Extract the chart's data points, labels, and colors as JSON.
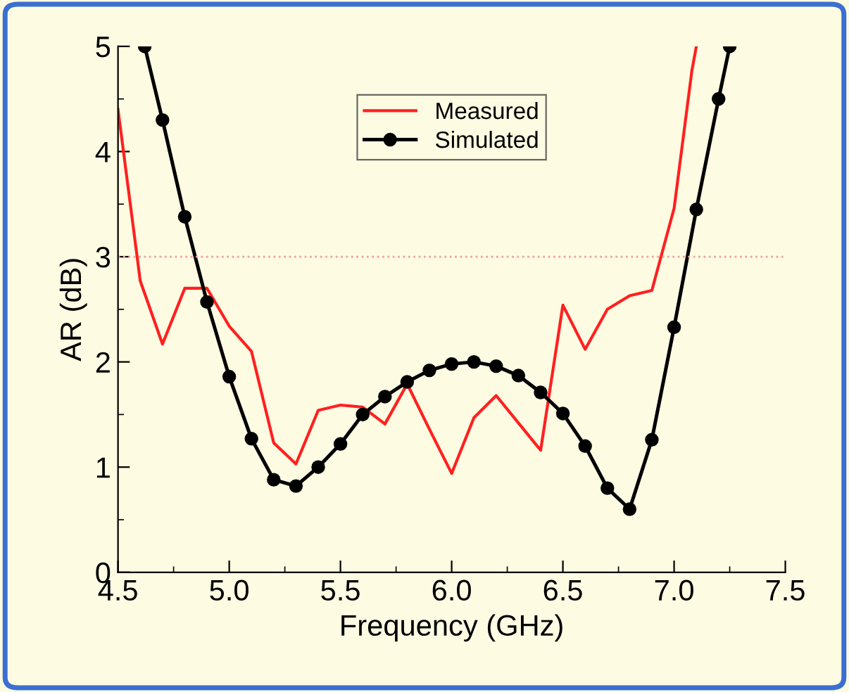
{
  "chart_data": {
    "type": "line",
    "xlabel": "Frequency (GHz)",
    "ylabel": "AR (dB)",
    "xlim": [
      4.5,
      7.5
    ],
    "xticks": [
      {
        "value": 4.5,
        "label": "4.5"
      },
      {
        "value": 5.0,
        "label": "5.0"
      },
      {
        "value": 5.5,
        "label": "5.5"
      },
      {
        "value": 6.0,
        "label": "6.0"
      },
      {
        "value": 6.5,
        "label": "6.5"
      },
      {
        "value": 7.0,
        "label": "7.0"
      },
      {
        "value": 7.5,
        "label": "7.5"
      }
    ],
    "ylim": [
      0,
      5
    ],
    "yticks": [
      0,
      1,
      2,
      3,
      4,
      5
    ],
    "grid": false,
    "legend": "top",
    "line_style": "solid",
    "ref_lines": [
      {
        "axis": "y",
        "value": 3,
        "color": "#f0a0a0",
        "line_style": "dotted"
      }
    ],
    "series": [
      {
        "name": "Measured",
        "color": "#ff2020",
        "marker": "none",
        "x": [
          4.5,
          4.6,
          4.7,
          4.8,
          4.9,
          5.0,
          5.1,
          5.2,
          5.3,
          5.4,
          5.5,
          5.6,
          5.7,
          5.8,
          5.9,
          6.0,
          6.1,
          6.2,
          6.3,
          6.4,
          6.5,
          6.6,
          6.7,
          6.8,
          6.9,
          7.0,
          7.08,
          7.1
        ],
        "values": [
          4.4,
          2.77,
          2.17,
          2.7,
          2.7,
          2.34,
          2.1,
          1.23,
          1.03,
          1.54,
          1.59,
          1.57,
          1.41,
          1.79,
          1.36,
          0.94,
          1.47,
          1.68,
          1.42,
          1.16,
          2.54,
          2.12,
          2.5,
          2.63,
          2.68,
          3.46,
          4.77,
          5.0
        ]
      },
      {
        "name": "Simulated",
        "color": "#000000",
        "marker": "circle",
        "x": [
          4.62,
          4.7,
          4.8,
          4.9,
          5.0,
          5.1,
          5.2,
          5.3,
          5.4,
          5.5,
          5.6,
          5.7,
          5.8,
          5.9,
          6.0,
          6.1,
          6.2,
          6.3,
          6.4,
          6.5,
          6.6,
          6.7,
          6.8,
          6.9,
          7.0,
          7.1,
          7.2,
          7.25
        ],
        "values": [
          5.0,
          4.3,
          3.38,
          2.57,
          1.86,
          1.27,
          0.88,
          0.82,
          1.0,
          1.22,
          1.5,
          1.67,
          1.81,
          1.92,
          1.98,
          2.0,
          1.96,
          1.87,
          1.71,
          1.51,
          1.2,
          0.8,
          0.6,
          1.26,
          2.33,
          3.45,
          4.5,
          5.0
        ]
      }
    ]
  }
}
